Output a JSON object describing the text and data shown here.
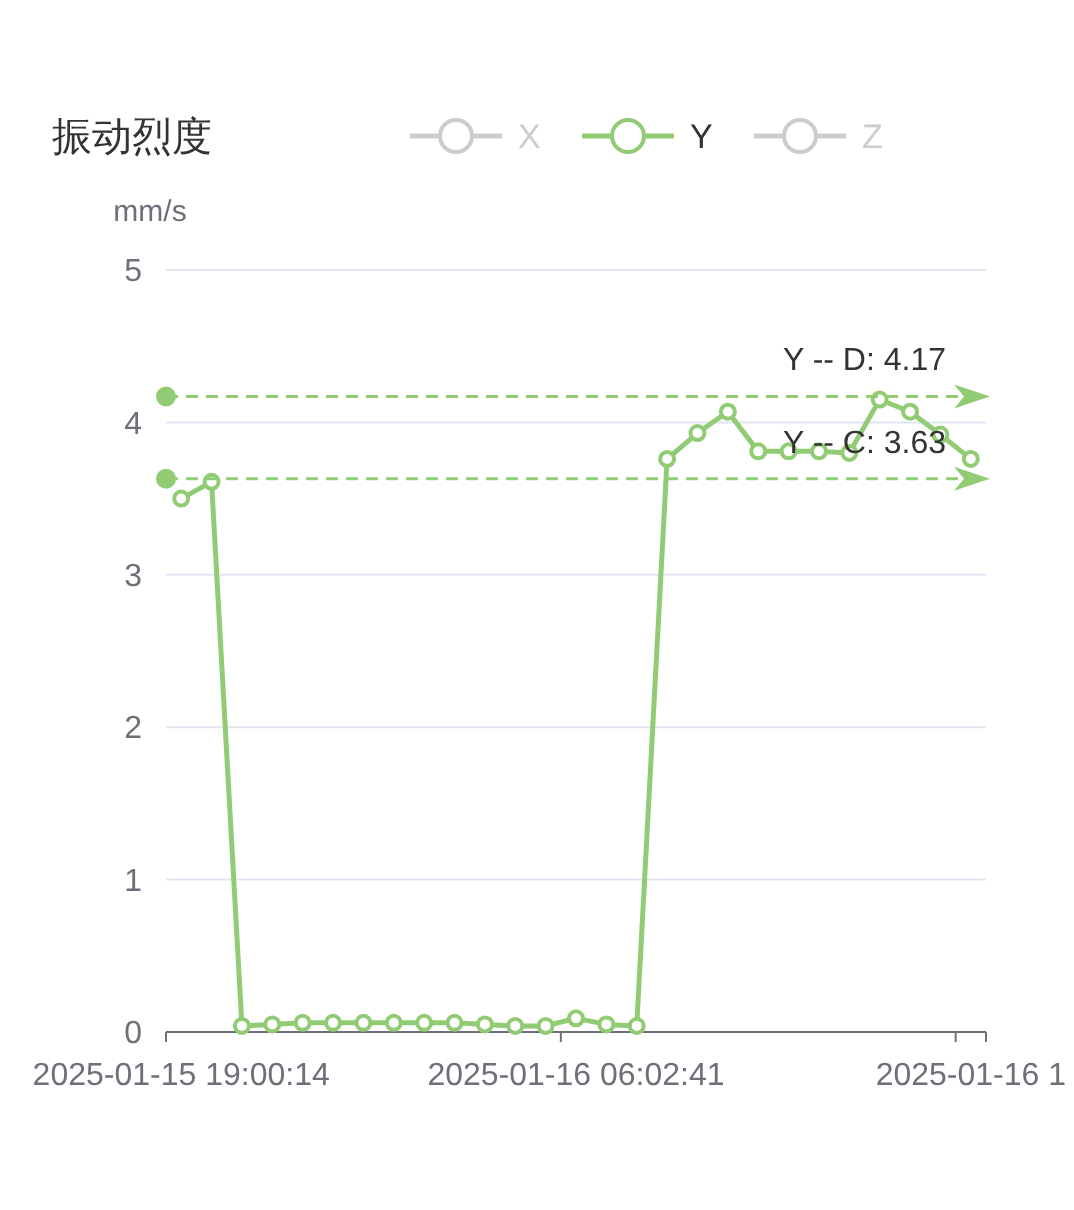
{
  "chart_data": {
    "type": "line",
    "title": "振动烈度",
    "ylabel": "mm/s",
    "categories": [
      "2025-01-15 19:00:14",
      null,
      null,
      null,
      null,
      null,
      null,
      null,
      null,
      null,
      null,
      null,
      null,
      "2025-01-16 06:02:41",
      null,
      null,
      null,
      null,
      null,
      null,
      null,
      null,
      null,
      null,
      null,
      null,
      "2025-01-16 1"
    ],
    "series": [
      {
        "name": "X",
        "color": "#cccccc",
        "values": [
          null,
          null,
          null,
          null,
          null,
          null,
          null,
          null,
          null,
          null,
          null,
          null,
          null,
          null,
          null,
          null,
          null,
          null,
          null,
          null,
          null,
          null,
          null,
          null,
          null,
          null,
          null
        ]
      },
      {
        "name": "Y",
        "color": "#91cc75",
        "values": [
          3.5,
          3.61,
          0.04,
          0.05,
          0.06,
          0.06,
          0.06,
          0.06,
          0.06,
          0.06,
          0.05,
          0.04,
          0.04,
          0.09,
          0.05,
          0.04,
          3.76,
          3.93,
          4.07,
          3.81,
          3.81,
          3.81,
          3.8,
          4.15,
          4.07,
          3.92,
          3.76
        ]
      },
      {
        "name": "Z",
        "color": "#cccccc",
        "values": [
          null,
          null,
          null,
          null,
          null,
          null,
          null,
          null,
          null,
          null,
          null,
          null,
          null,
          null,
          null,
          null,
          null,
          null,
          null,
          null,
          null,
          null,
          null,
          null,
          null,
          null,
          null
        ]
      }
    ],
    "ylim": [
      0,
      5
    ],
    "yticks": [
      0,
      1,
      2,
      3,
      4,
      5
    ],
    "grid": "y",
    "legend": "top",
    "marker": "circle",
    "ref_lines": [
      {
        "axis": "y",
        "value": 4.17,
        "label": "Y -- D: 4.17",
        "color": "#91cc75",
        "line_style": "dashed"
      },
      {
        "axis": "y",
        "value": 3.63,
        "label": "Y -- C: 3.63",
        "color": "#91cc75",
        "line_style": "dashed"
      }
    ]
  }
}
